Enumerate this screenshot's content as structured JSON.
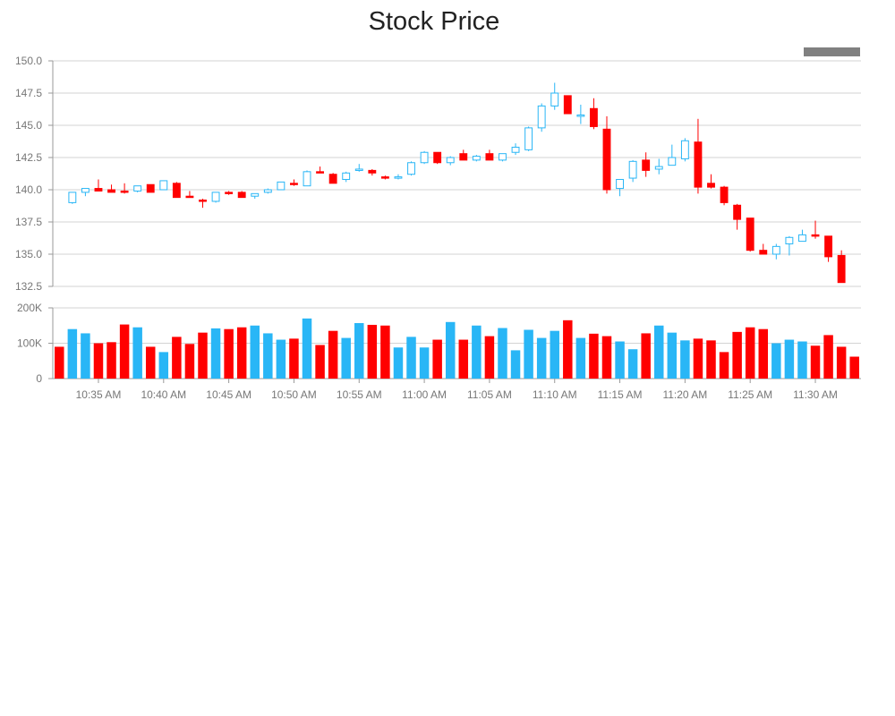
{
  "chart_data": {
    "type": "candlestick",
    "title": "Stock Price",
    "up_color": "#29b6f6",
    "down_color": "#ff0000",
    "legend_swatch_color": "#808080",
    "price_axis": {
      "ylim": [
        132.5,
        150.0
      ],
      "ticks": [
        "132.5",
        "135.0",
        "137.5",
        "140.0",
        "142.5",
        "145.0",
        "147.5",
        "150.0"
      ]
    },
    "volume_axis": {
      "ylim": [
        0,
        200000
      ],
      "ticks": [
        {
          "value": 0,
          "label": "0"
        },
        {
          "value": 100000,
          "label": "100K"
        },
        {
          "value": 200000,
          "label": "200K"
        }
      ]
    },
    "x_ticks": [
      {
        "time": "10:35",
        "label": "10:35 AM"
      },
      {
        "time": "10:40",
        "label": "10:40 AM"
      },
      {
        "time": "10:45",
        "label": "10:45 AM"
      },
      {
        "time": "10:50",
        "label": "10:50 AM"
      },
      {
        "time": "10:55",
        "label": "10:55 AM"
      },
      {
        "time": "11:00",
        "label": "11:00 AM"
      },
      {
        "time": "11:05",
        "label": "11:05 AM"
      },
      {
        "time": "11:10",
        "label": "11:10 AM"
      },
      {
        "time": "11:15",
        "label": "11:15 AM"
      },
      {
        "time": "11:20",
        "label": "11:20 AM"
      },
      {
        "time": "11:25",
        "label": "11:25 AM"
      },
      {
        "time": "11:30",
        "label": "11:30 AM"
      }
    ],
    "x_range": [
      "10:32",
      "11:33"
    ],
    "bars": [
      {
        "t": "10:32",
        "o": null,
        "h": null,
        "l": null,
        "c": null,
        "v": 90000,
        "dir": "down"
      },
      {
        "t": "10:33",
        "o": 139.0,
        "h": 139.8,
        "l": 138.9,
        "c": 139.8,
        "v": 140000,
        "dir": "up"
      },
      {
        "t": "10:34",
        "o": 139.8,
        "h": 140.1,
        "l": 139.5,
        "c": 140.1,
        "v": 128000,
        "dir": "up"
      },
      {
        "t": "10:35",
        "o": 140.1,
        "h": 140.8,
        "l": 139.9,
        "c": 139.9,
        "v": 100000,
        "dir": "down"
      },
      {
        "t": "10:36",
        "o": 140.0,
        "h": 140.4,
        "l": 139.8,
        "c": 139.8,
        "v": 103000,
        "dir": "down"
      },
      {
        "t": "10:37",
        "o": 139.8,
        "h": 140.5,
        "l": 139.7,
        "c": 139.9,
        "v": 153000,
        "dir": "down"
      },
      {
        "t": "10:38",
        "o": 139.9,
        "h": 140.3,
        "l": 139.8,
        "c": 140.3,
        "v": 145000,
        "dir": "up"
      },
      {
        "t": "10:39",
        "o": 140.4,
        "h": 140.4,
        "l": 139.8,
        "c": 139.8,
        "v": 90000,
        "dir": "down"
      },
      {
        "t": "10:40",
        "o": 140.0,
        "h": 140.7,
        "l": 140.0,
        "c": 140.7,
        "v": 75000,
        "dir": "up"
      },
      {
        "t": "10:41",
        "o": 140.5,
        "h": 140.6,
        "l": 139.4,
        "c": 139.4,
        "v": 118000,
        "dir": "down"
      },
      {
        "t": "10:42",
        "o": 139.5,
        "h": 139.9,
        "l": 139.4,
        "c": 139.4,
        "v": 98000,
        "dir": "down"
      },
      {
        "t": "10:43",
        "o": 139.2,
        "h": 139.3,
        "l": 138.6,
        "c": 139.1,
        "v": 130000,
        "dir": "down"
      },
      {
        "t": "10:44",
        "o": 139.1,
        "h": 139.8,
        "l": 139.0,
        "c": 139.8,
        "v": 142000,
        "dir": "up"
      },
      {
        "t": "10:45",
        "o": 139.8,
        "h": 139.9,
        "l": 139.6,
        "c": 139.8,
        "v": 140000,
        "dir": "down"
      },
      {
        "t": "10:46",
        "o": 139.8,
        "h": 139.9,
        "l": 139.4,
        "c": 139.4,
        "v": 145000,
        "dir": "down"
      },
      {
        "t": "10:47",
        "o": 139.5,
        "h": 139.7,
        "l": 139.3,
        "c": 139.7,
        "v": 150000,
        "dir": "up"
      },
      {
        "t": "10:48",
        "o": 139.8,
        "h": 140.1,
        "l": 139.7,
        "c": 140.0,
        "v": 128000,
        "dir": "up"
      },
      {
        "t": "10:49",
        "o": 140.0,
        "h": 140.6,
        "l": 140.0,
        "c": 140.6,
        "v": 110000,
        "dir": "up"
      },
      {
        "t": "10:50",
        "o": 140.5,
        "h": 140.8,
        "l": 140.3,
        "c": 140.4,
        "v": 113000,
        "dir": "down"
      },
      {
        "t": "10:51",
        "o": 140.3,
        "h": 141.5,
        "l": 140.3,
        "c": 141.4,
        "v": 170000,
        "dir": "up"
      },
      {
        "t": "10:52",
        "o": 141.4,
        "h": 141.8,
        "l": 141.3,
        "c": 141.3,
        "v": 95000,
        "dir": "down"
      },
      {
        "t": "10:53",
        "o": 141.2,
        "h": 141.3,
        "l": 140.5,
        "c": 140.5,
        "v": 135000,
        "dir": "down"
      },
      {
        "t": "10:54",
        "o": 140.8,
        "h": 141.4,
        "l": 140.6,
        "c": 141.3,
        "v": 115000,
        "dir": "up"
      },
      {
        "t": "10:55",
        "o": 141.5,
        "h": 142.0,
        "l": 141.4,
        "c": 141.6,
        "v": 157000,
        "dir": "up"
      },
      {
        "t": "10:56",
        "o": 141.5,
        "h": 141.6,
        "l": 141.1,
        "c": 141.3,
        "v": 152000,
        "dir": "down"
      },
      {
        "t": "10:57",
        "o": 141.0,
        "h": 141.1,
        "l": 140.8,
        "c": 140.9,
        "v": 150000,
        "dir": "down"
      },
      {
        "t": "10:58",
        "o": 140.9,
        "h": 141.2,
        "l": 140.8,
        "c": 141.0,
        "v": 88000,
        "dir": "up"
      },
      {
        "t": "10:59",
        "o": 141.2,
        "h": 142.2,
        "l": 141.1,
        "c": 142.1,
        "v": 118000,
        "dir": "up"
      },
      {
        "t": "11:00",
        "o": 142.1,
        "h": 143.0,
        "l": 142.0,
        "c": 142.9,
        "v": 88000,
        "dir": "up"
      },
      {
        "t": "11:01",
        "o": 142.9,
        "h": 142.9,
        "l": 142.0,
        "c": 142.1,
        "v": 110000,
        "dir": "down"
      },
      {
        "t": "11:02",
        "o": 142.1,
        "h": 142.6,
        "l": 141.9,
        "c": 142.5,
        "v": 160000,
        "dir": "up"
      },
      {
        "t": "11:03",
        "o": 142.8,
        "h": 143.1,
        "l": 142.3,
        "c": 142.3,
        "v": 110000,
        "dir": "down"
      },
      {
        "t": "11:04",
        "o": 142.3,
        "h": 142.7,
        "l": 142.2,
        "c": 142.6,
        "v": 150000,
        "dir": "up"
      },
      {
        "t": "11:05",
        "o": 142.8,
        "h": 143.1,
        "l": 142.3,
        "c": 142.3,
        "v": 120000,
        "dir": "down"
      },
      {
        "t": "11:06",
        "o": 142.3,
        "h": 142.8,
        "l": 142.2,
        "c": 142.8,
        "v": 143000,
        "dir": "up"
      },
      {
        "t": "11:07",
        "o": 142.9,
        "h": 143.6,
        "l": 142.7,
        "c": 143.3,
        "v": 80000,
        "dir": "up"
      },
      {
        "t": "11:08",
        "o": 143.1,
        "h": 144.9,
        "l": 143.0,
        "c": 144.8,
        "v": 138000,
        "dir": "up"
      },
      {
        "t": "11:09",
        "o": 144.8,
        "h": 146.7,
        "l": 144.5,
        "c": 146.5,
        "v": 115000,
        "dir": "up"
      },
      {
        "t": "11:10",
        "o": 146.5,
        "h": 148.3,
        "l": 146.2,
        "c": 147.5,
        "v": 135000,
        "dir": "up"
      },
      {
        "t": "11:11",
        "o": 147.3,
        "h": 147.3,
        "l": 145.9,
        "c": 145.9,
        "v": 165000,
        "dir": "down"
      },
      {
        "t": "11:12",
        "o": 145.8,
        "h": 146.6,
        "l": 145.1,
        "c": 145.8,
        "v": 115000,
        "dir": "up"
      },
      {
        "t": "11:13",
        "o": 146.3,
        "h": 147.1,
        "l": 144.7,
        "c": 144.9,
        "v": 127000,
        "dir": "down"
      },
      {
        "t": "11:14",
        "o": 144.7,
        "h": 145.7,
        "l": 139.7,
        "c": 140.0,
        "v": 120000,
        "dir": "down"
      },
      {
        "t": "11:15",
        "o": 140.1,
        "h": 140.8,
        "l": 139.5,
        "c": 140.8,
        "v": 105000,
        "dir": "up"
      },
      {
        "t": "11:16",
        "o": 140.9,
        "h": 142.3,
        "l": 140.6,
        "c": 142.2,
        "v": 83000,
        "dir": "up"
      },
      {
        "t": "11:17",
        "o": 142.3,
        "h": 142.9,
        "l": 141.0,
        "c": 141.5,
        "v": 128000,
        "dir": "down"
      },
      {
        "t": "11:18",
        "o": 141.6,
        "h": 142.4,
        "l": 141.2,
        "c": 141.8,
        "v": 150000,
        "dir": "up"
      },
      {
        "t": "11:19",
        "o": 141.9,
        "h": 143.5,
        "l": 141.9,
        "c": 142.5,
        "v": 130000,
        "dir": "up"
      },
      {
        "t": "11:20",
        "o": 142.4,
        "h": 144.0,
        "l": 142.2,
        "c": 143.8,
        "v": 108000,
        "dir": "up"
      },
      {
        "t": "11:21",
        "o": 143.7,
        "h": 145.5,
        "l": 139.7,
        "c": 140.2,
        "v": 113000,
        "dir": "down"
      },
      {
        "t": "11:22",
        "o": 140.5,
        "h": 141.2,
        "l": 140.1,
        "c": 140.2,
        "v": 108000,
        "dir": "down"
      },
      {
        "t": "11:23",
        "o": 140.2,
        "h": 140.3,
        "l": 138.8,
        "c": 139.0,
        "v": 75000,
        "dir": "down"
      },
      {
        "t": "11:24",
        "o": 138.8,
        "h": 138.9,
        "l": 136.9,
        "c": 137.7,
        "v": 132000,
        "dir": "down"
      },
      {
        "t": "11:25",
        "o": 137.8,
        "h": 137.8,
        "l": 135.2,
        "c": 135.3,
        "v": 145000,
        "dir": "down"
      },
      {
        "t": "11:26",
        "o": 135.3,
        "h": 135.8,
        "l": 135.0,
        "c": 135.0,
        "v": 140000,
        "dir": "down"
      },
      {
        "t": "11:27",
        "o": 135.0,
        "h": 135.8,
        "l": 134.6,
        "c": 135.6,
        "v": 100000,
        "dir": "up"
      },
      {
        "t": "11:28",
        "o": 135.8,
        "h": 136.4,
        "l": 134.9,
        "c": 136.3,
        "v": 110000,
        "dir": "up"
      },
      {
        "t": "11:29",
        "o": 136.0,
        "h": 136.9,
        "l": 136.0,
        "c": 136.5,
        "v": 105000,
        "dir": "up"
      },
      {
        "t": "11:30",
        "o": 136.5,
        "h": 137.6,
        "l": 136.2,
        "c": 136.4,
        "v": 93000,
        "dir": "down"
      },
      {
        "t": "11:31",
        "o": 136.4,
        "h": 136.4,
        "l": 134.4,
        "c": 134.8,
        "v": 123000,
        "dir": "down"
      },
      {
        "t": "11:32",
        "o": 134.9,
        "h": 135.3,
        "l": 132.8,
        "c": 132.8,
        "v": 90000,
        "dir": "down"
      },
      {
        "t": "11:33",
        "o": null,
        "h": null,
        "l": null,
        "c": null,
        "v": 62000,
        "dir": "down"
      }
    ]
  }
}
